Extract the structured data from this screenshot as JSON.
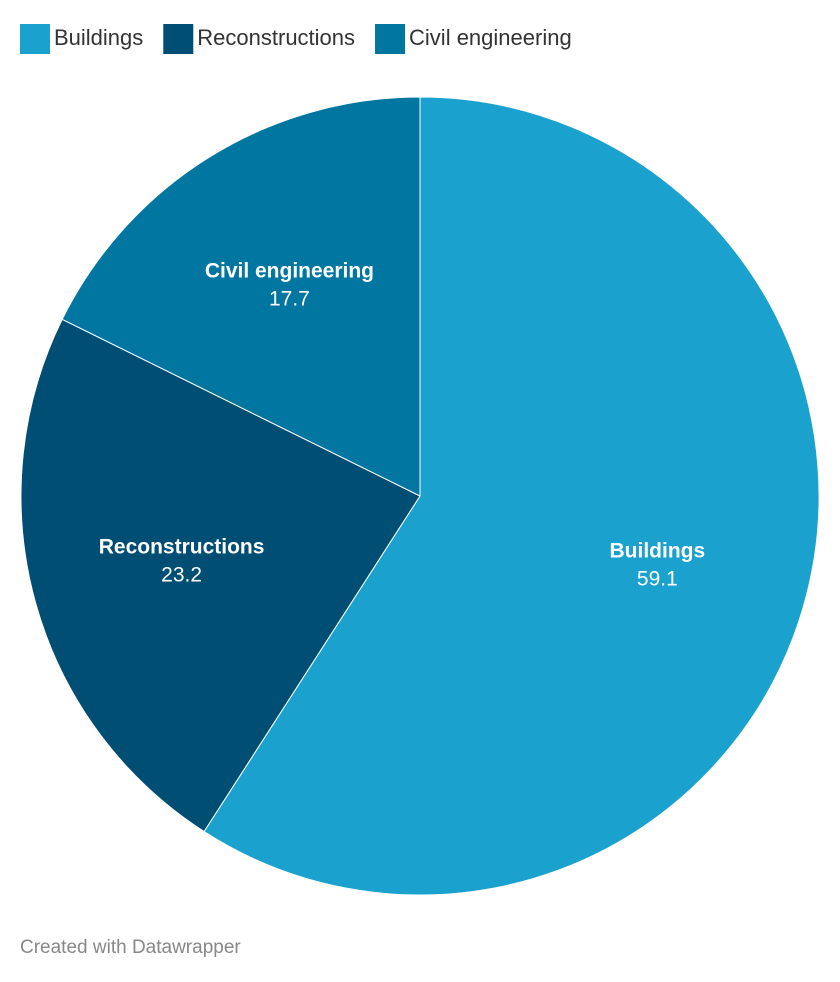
{
  "chart_data": {
    "type": "pie",
    "categories": [
      "Buildings",
      "Reconstructions",
      "Civil engineering"
    ],
    "values": [
      59.1,
      23.2,
      17.7
    ],
    "colors": [
      "#1aa1cd",
      "#004e74",
      "#0076a1"
    ],
    "credit": "Created with Datawrapper"
  }
}
